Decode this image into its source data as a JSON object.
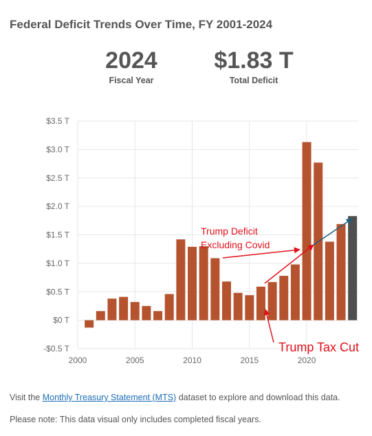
{
  "header": {
    "title": "Federal Deficit Trends Over Time, FY 2001-2024"
  },
  "stats": {
    "year_value": "2024",
    "year_label": "Fiscal Year",
    "total_value": "$1.83 T",
    "total_label": "Total Deficit"
  },
  "colors": {
    "bar": "#b5532f",
    "bar_highlight": "#4f4f4f",
    "grid": "#e6e6e6",
    "annotation": "#e0101a",
    "arrow_blue": "#1f5f7a"
  },
  "chart_data": {
    "type": "bar",
    "title": "Federal Deficit Trends Over Time, FY 2001-2024",
    "xlabel": "",
    "ylabel": "",
    "x": [
      2001,
      2002,
      2003,
      2004,
      2005,
      2006,
      2007,
      2008,
      2009,
      2010,
      2011,
      2012,
      2013,
      2014,
      2015,
      2016,
      2017,
      2018,
      2019,
      2020,
      2021,
      2022,
      2023,
      2024
    ],
    "values": [
      -0.13,
      0.16,
      0.38,
      0.41,
      0.32,
      0.25,
      0.16,
      0.46,
      1.42,
      1.29,
      1.3,
      1.09,
      0.68,
      0.48,
      0.44,
      0.59,
      0.67,
      0.78,
      0.98,
      3.13,
      2.77,
      1.38,
      1.69,
      1.83
    ],
    "highlight_x": 2024,
    "x_ticks": [
      2000,
      2005,
      2010,
      2015,
      2020
    ],
    "x_tick_labels": [
      "2000",
      "2005",
      "2010",
      "2015",
      "2020"
    ],
    "xlim": [
      2000,
      2024.5
    ],
    "ylim": [
      -0.5,
      3.5
    ],
    "y_ticks": [
      -0.5,
      0,
      0.5,
      1.0,
      1.5,
      2.0,
      2.5,
      3.0,
      3.5
    ],
    "y_tick_labels": [
      "-$0.5 T",
      "$0 T",
      "$0.5 T",
      "$1.0 T",
      "$1.5 T",
      "$2.0 T",
      "$2.5 T",
      "$3.0 T",
      "$3.5 T"
    ],
    "grid": true,
    "annotations": {
      "deficit_label_line1": "Trump Deficit",
      "deficit_label_line2": "Excluding Covid",
      "tax_cut_label": "Trump Tax Cut"
    }
  },
  "footer": {
    "line1_before": "Visit the ",
    "line1_link": "Monthly Treasury Statement (MTS)",
    "line1_after": " dataset to explore and download this data.",
    "line2": "Please note: This data visual only includes completed fiscal years."
  }
}
